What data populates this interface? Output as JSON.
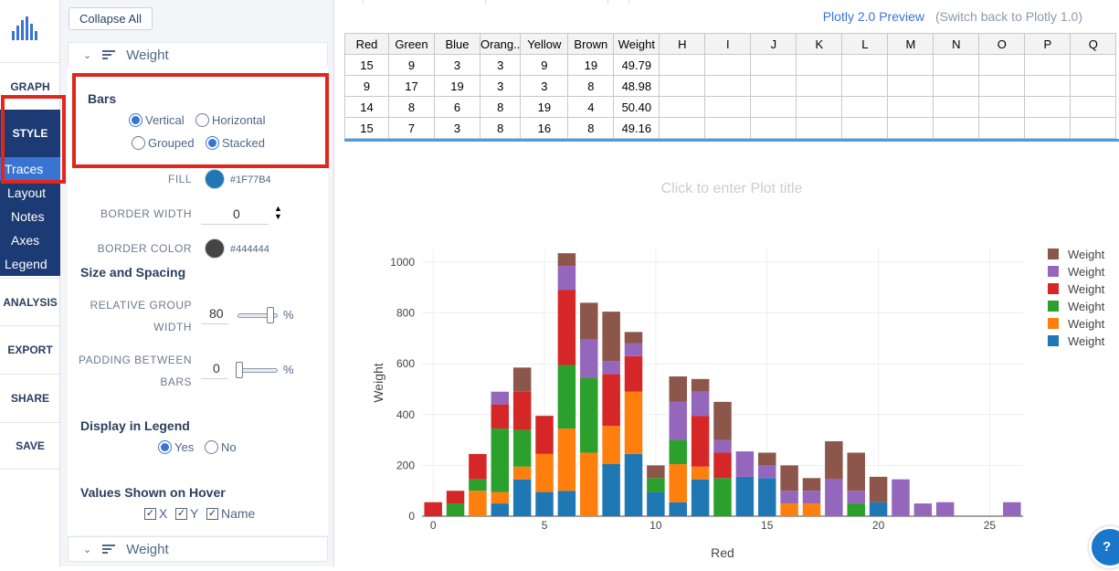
{
  "nav": {
    "graph": "GRAPH",
    "style": "STYLE",
    "sub_items": [
      "Traces",
      "Layout",
      "Notes",
      "Axes",
      "Legend"
    ],
    "analysis": "ANALYSIS",
    "export": "EXPORT",
    "share": "SHARE",
    "save": "SAVE"
  },
  "panel": {
    "collapse_all": "Collapse All",
    "section_title": "Weight",
    "section_title_bottom": "Weight",
    "bars": {
      "title": "Bars",
      "vertical": "Vertical",
      "horizontal": "Horizontal",
      "grouped": "Grouped",
      "stacked": "Stacked",
      "orientation_selected": "Vertical",
      "mode_selected": "Stacked"
    },
    "fill": {
      "label": "FILL",
      "value": "#1F77B4"
    },
    "border_width": {
      "label": "BORDER WIDTH",
      "value": "0"
    },
    "border_color": {
      "label": "BORDER COLOR",
      "value": "#444444"
    },
    "size_spacing": {
      "title": "Size and Spacing",
      "rel_group_label_1": "RELATIVE GROUP",
      "rel_group_label_2": "WIDTH",
      "rel_group_value": "80",
      "rel_group_fraction": 0.8,
      "padding_label_1": "PADDING BETWEEN",
      "padding_label_2": "BARS",
      "padding_value": "0",
      "padding_fraction": 0,
      "unit": "%"
    },
    "legend": {
      "title": "Display in Legend",
      "yes": "Yes",
      "no": "No",
      "selected": "Yes"
    },
    "hover": {
      "title": "Values Shown on Hover",
      "x": "X",
      "y": "Y",
      "name": "Name"
    }
  },
  "header": {
    "preview": "Plotly 2.0 Preview",
    "switch_back": "(Switch back to Plotly 1.0)"
  },
  "grid": {
    "columns": [
      "Red",
      "Green",
      "Blue",
      "Orang..",
      "Yellow",
      "Brown",
      "Weight",
      "H",
      "I",
      "J",
      "K",
      "L",
      "M",
      "N",
      "O",
      "P",
      "Q"
    ],
    "rows": [
      [
        "15",
        "9",
        "3",
        "3",
        "9",
        "19",
        "49.79"
      ],
      [
        "9",
        "17",
        "19",
        "3",
        "3",
        "8",
        "48.98"
      ],
      [
        "14",
        "8",
        "6",
        "8",
        "19",
        "4",
        "50.40"
      ],
      [
        "15",
        "7",
        "3",
        "8",
        "16",
        "8",
        "49.16"
      ]
    ]
  },
  "plot": {
    "title_placeholder": "Click to enter Plot title"
  },
  "help": {
    "label": "?"
  },
  "chart_data": {
    "type": "bar",
    "barmode": "stack",
    "title": "",
    "xlabel": "Red",
    "ylabel": "Weight",
    "xlim": [
      -0.5,
      26.5
    ],
    "ylim": [
      0,
      1050
    ],
    "xticks": [
      0,
      5,
      10,
      15,
      20,
      25
    ],
    "yticks": [
      0,
      200,
      400,
      600,
      800,
      1000
    ],
    "grid": true,
    "legend_position": "top-right",
    "x": [
      0,
      1,
      2,
      3,
      4,
      5,
      6,
      7,
      8,
      9,
      10,
      11,
      12,
      13,
      14,
      15,
      16,
      17,
      18,
      19,
      20,
      21,
      22,
      23,
      24,
      25,
      26
    ],
    "series": [
      {
        "name": "Weight",
        "color": "#1f77b4",
        "values": [
          0,
          0,
          0,
          50,
          145,
          95,
          100,
          0,
          205,
          245,
          95,
          55,
          145,
          0,
          155,
          150,
          0,
          0,
          0,
          0,
          55,
          0,
          0,
          0,
          0,
          0,
          0
        ]
      },
      {
        "name": "Weight",
        "color": "#ff7f0e",
        "values": [
          0,
          0,
          100,
          45,
          50,
          150,
          245,
          250,
          150,
          245,
          0,
          150,
          50,
          0,
          0,
          0,
          50,
          50,
          0,
          0,
          0,
          0,
          0,
          0,
          0,
          0,
          0
        ]
      },
      {
        "name": "Weight",
        "color": "#2ca02c",
        "values": [
          0,
          50,
          45,
          250,
          145,
          0,
          250,
          295,
          0,
          0,
          55,
          95,
          0,
          150,
          0,
          0,
          0,
          0,
          0,
          50,
          0,
          0,
          0,
          0,
          0,
          0,
          0
        ]
      },
      {
        "name": "Weight",
        "color": "#d62728",
        "values": [
          55,
          50,
          100,
          95,
          150,
          150,
          295,
          0,
          205,
          140,
          0,
          0,
          200,
          100,
          0,
          0,
          0,
          0,
          0,
          0,
          0,
          0,
          0,
          0,
          0,
          0,
          0
        ]
      },
      {
        "name": "Weight",
        "color": "#9467bd",
        "values": [
          0,
          0,
          0,
          50,
          0,
          0,
          95,
          150,
          50,
          50,
          0,
          150,
          95,
          50,
          100,
          50,
          50,
          50,
          145,
          50,
          0,
          145,
          50,
          55,
          0,
          0,
          55
        ]
      },
      {
        "name": "Weight",
        "color": "#8c564b",
        "values": [
          0,
          0,
          0,
          0,
          95,
          0,
          50,
          145,
          195,
          45,
          50,
          100,
          50,
          150,
          0,
          50,
          100,
          50,
          150,
          150,
          100,
          0,
          0,
          0,
          0,
          0,
          0
        ]
      }
    ]
  }
}
